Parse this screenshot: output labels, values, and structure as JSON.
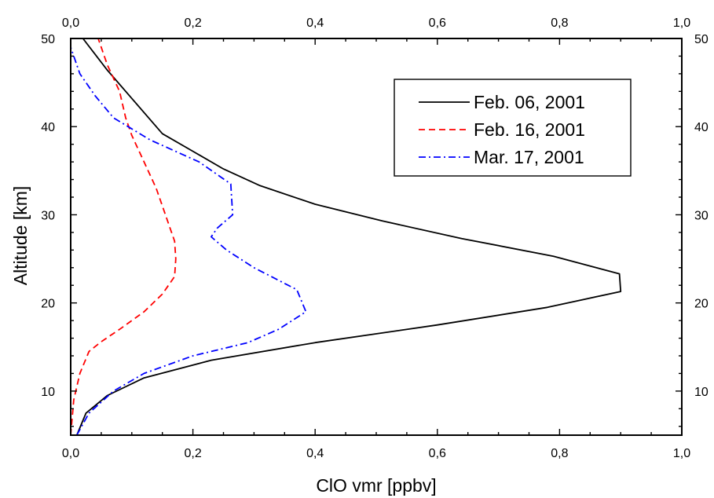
{
  "chart_data": {
    "type": "line",
    "xlabel": "ClO vmr [ppbv]",
    "ylabel": "Altitude [km]",
    "xlim": [
      0.0,
      1.0
    ],
    "ylim": [
      5,
      50
    ],
    "x_ticks": [
      "0,0",
      "0,2",
      "0,4",
      "0,6",
      "0,8",
      "1,0"
    ],
    "y_ticks": [
      "10",
      "20",
      "30",
      "40",
      "50"
    ],
    "grid": false,
    "legend_position": "top-right",
    "series": [
      {
        "name": "Feb. 06, 2001",
        "color": "#000000",
        "style": "solid",
        "points": [
          [
            0.01,
            5
          ],
          [
            0.025,
            7.5
          ],
          [
            0.06,
            9.5
          ],
          [
            0.12,
            11.5
          ],
          [
            0.23,
            13.5
          ],
          [
            0.4,
            15.5
          ],
          [
            0.6,
            17.5
          ],
          [
            0.78,
            19.5
          ],
          [
            0.9,
            21.3
          ],
          [
            0.898,
            23.3
          ],
          [
            0.79,
            25.3
          ],
          [
            0.64,
            27.3
          ],
          [
            0.51,
            29.3
          ],
          [
            0.4,
            31.2
          ],
          [
            0.31,
            33.3
          ],
          [
            0.25,
            35.2
          ],
          [
            0.2,
            37.2
          ],
          [
            0.15,
            39.2
          ],
          [
            0.1,
            43.2
          ],
          [
            0.06,
            46.4
          ],
          [
            0.02,
            50
          ]
        ]
      },
      {
        "name": "Feb. 16, 2001",
        "color": "#ff0000",
        "style": "dashed",
        "points": [
          [
            0.0,
            5
          ],
          [
            0.005,
            9
          ],
          [
            0.015,
            12
          ],
          [
            0.03,
            14.5
          ],
          [
            0.05,
            15.6
          ],
          [
            0.08,
            17
          ],
          [
            0.12,
            19
          ],
          [
            0.15,
            21
          ],
          [
            0.17,
            23
          ],
          [
            0.172,
            25
          ],
          [
            0.17,
            27
          ],
          [
            0.155,
            30
          ],
          [
            0.14,
            33
          ],
          [
            0.12,
            36
          ],
          [
            0.1,
            39
          ],
          [
            0.09,
            41
          ],
          [
            0.08,
            44
          ],
          [
            0.06,
            47
          ],
          [
            0.045,
            50
          ]
        ]
      },
      {
        "name": "Mar. 17, 2001",
        "color": "#0000ff",
        "style": "dashdot",
        "points": [
          [
            0.01,
            5
          ],
          [
            0.03,
            7.5
          ],
          [
            0.07,
            10
          ],
          [
            0.12,
            12
          ],
          [
            0.2,
            14
          ],
          [
            0.29,
            15.5
          ],
          [
            0.34,
            17
          ],
          [
            0.385,
            19
          ],
          [
            0.37,
            21.5
          ],
          [
            0.3,
            24
          ],
          [
            0.255,
            26
          ],
          [
            0.23,
            27.5
          ],
          [
            0.24,
            28.5
          ],
          [
            0.265,
            30
          ],
          [
            0.262,
            33.5
          ],
          [
            0.21,
            36
          ],
          [
            0.13,
            38.5
          ],
          [
            0.07,
            41
          ],
          [
            0.04,
            43.5
          ],
          [
            0.015,
            46
          ],
          [
            0.0,
            49
          ]
        ]
      }
    ]
  }
}
